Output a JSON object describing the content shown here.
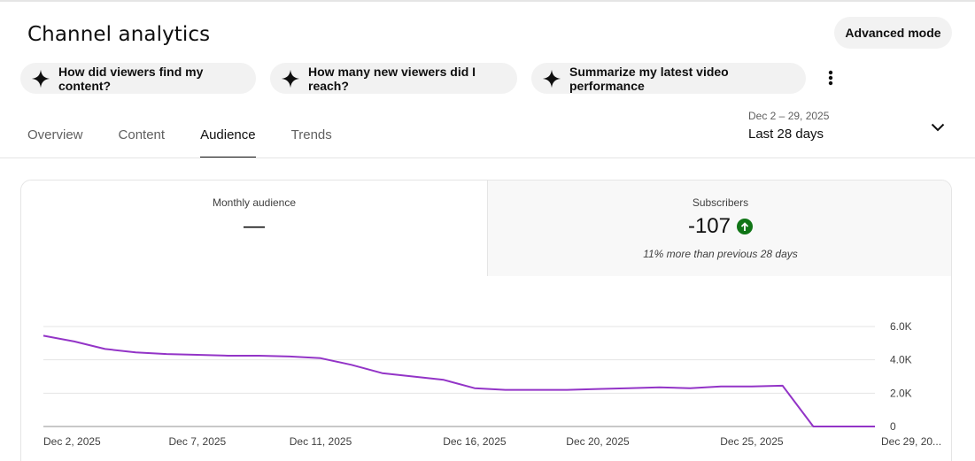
{
  "header": {
    "title": "Channel analytics",
    "advanced_mode_label": "Advanced mode"
  },
  "suggestions": [
    {
      "label": "How did viewers find my content?",
      "icon": "sparkle-icon"
    },
    {
      "label": "How many new viewers did I reach?",
      "icon": "sparkle-icon"
    },
    {
      "label": "Summarize my latest video performance",
      "icon": "sparkle-icon"
    }
  ],
  "tabs": [
    {
      "label": "Overview",
      "active": false
    },
    {
      "label": "Content",
      "active": false
    },
    {
      "label": "Audience",
      "active": true
    },
    {
      "label": "Trends",
      "active": false
    }
  ],
  "date_picker": {
    "range": "Dec 2 – 29, 2025",
    "label": "Last 28 days"
  },
  "metrics": {
    "monthly_audience": {
      "label": "Monthly audience",
      "value": "—"
    },
    "subscribers": {
      "label": "Subscribers",
      "value": "-107",
      "trend": "up",
      "note": "11% more than previous 28 days",
      "trend_color": "#107516"
    }
  },
  "colors": {
    "series": "#9334c7"
  },
  "chart_data": {
    "type": "line",
    "x": [
      "Dec 2",
      "Dec 3",
      "Dec 4",
      "Dec 5",
      "Dec 6",
      "Dec 7",
      "Dec 8",
      "Dec 9",
      "Dec 10",
      "Dec 11",
      "Dec 12",
      "Dec 13",
      "Dec 14",
      "Dec 15",
      "Dec 16",
      "Dec 17",
      "Dec 18",
      "Dec 19",
      "Dec 20",
      "Dec 21",
      "Dec 22",
      "Dec 23",
      "Dec 24",
      "Dec 25",
      "Dec 26",
      "Dec 27",
      "Dec 28",
      "Dec 29"
    ],
    "series": [
      {
        "values": [
          5450,
          5100,
          4650,
          4450,
          4350,
          4300,
          4250,
          4250,
          4200,
          4100,
          3700,
          3200,
          3000,
          2800,
          2300,
          2200,
          2200,
          2200,
          2250,
          2300,
          2350,
          2300,
          2400,
          2400,
          2450,
          0,
          0,
          0
        ]
      }
    ],
    "x_tick_labels": [
      "Dec 2, 2025",
      "Dec 7, 2025",
      "Dec 11, 2025",
      "Dec 16, 2025",
      "Dec 20, 2025",
      "Dec 25, 2025",
      "Dec 29, 20..."
    ],
    "x_tick_index": [
      0,
      5,
      9,
      14,
      18,
      23,
      27
    ],
    "y_ticks": [
      0,
      2000,
      4000,
      6000
    ],
    "y_tick_labels": [
      "0",
      "2.0K",
      "4.0K",
      "6.0K"
    ],
    "ylim": [
      0,
      6000
    ],
    "grid": true,
    "y_axis_position": "right"
  }
}
